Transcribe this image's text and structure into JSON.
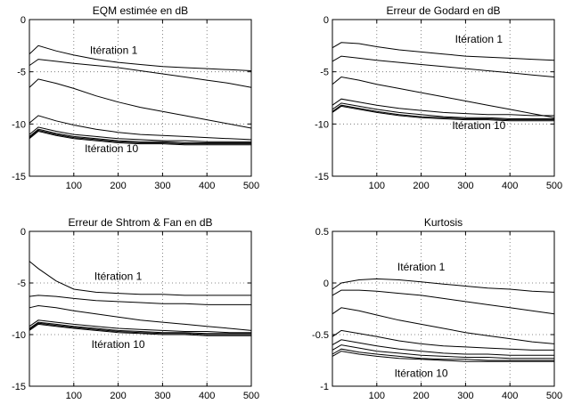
{
  "chart_data": [
    {
      "type": "line",
      "title": "EQM estimée en dB",
      "xlim": [
        0,
        500
      ],
      "ylim": [
        -15,
        0
      ],
      "xticks": [
        100,
        200,
        300,
        400,
        500
      ],
      "yticks": [
        0,
        -5,
        -10,
        -15
      ],
      "grid": true,
      "annotations": [
        {
          "text": "Itération 1",
          "x": 190,
          "y": -3.3
        },
        {
          "text": "Itération 10",
          "x": 185,
          "y": -12.7
        }
      ],
      "series": [
        {
          "x": [
            0,
            20,
            60,
            100,
            150,
            200,
            250,
            300,
            350,
            400,
            450,
            500
          ],
          "y": [
            -3.3,
            -2.5,
            -3.0,
            -3.4,
            -3.8,
            -4.1,
            -4.3,
            -4.5,
            -4.6,
            -4.7,
            -4.8,
            -4.9
          ]
        },
        {
          "x": [
            0,
            20,
            60,
            100,
            150,
            200,
            250,
            300,
            350,
            400,
            450,
            500
          ],
          "y": [
            -4.4,
            -3.8,
            -4.0,
            -4.2,
            -4.4,
            -4.6,
            -4.9,
            -5.2,
            -5.5,
            -5.8,
            -6.1,
            -6.5
          ]
        },
        {
          "x": [
            0,
            20,
            60,
            100,
            150,
            200,
            250,
            300,
            350,
            400,
            450,
            500
          ],
          "y": [
            -6.5,
            -5.7,
            -6.1,
            -6.6,
            -7.3,
            -7.9,
            -8.4,
            -8.8,
            -9.2,
            -9.6,
            -10.0,
            -10.4
          ]
        },
        {
          "x": [
            0,
            20,
            60,
            100,
            150,
            200,
            250,
            300,
            350,
            400,
            450,
            500
          ],
          "y": [
            -9.9,
            -9.2,
            -9.7,
            -10.1,
            -10.5,
            -10.8,
            -11.0,
            -11.1,
            -11.2,
            -11.3,
            -11.4,
            -11.5
          ]
        },
        {
          "x": [
            0,
            20,
            60,
            100,
            150,
            200,
            250,
            300,
            350,
            400,
            450,
            500
          ],
          "y": [
            -11.0,
            -10.3,
            -10.7,
            -11.0,
            -11.2,
            -11.4,
            -11.5,
            -11.6,
            -11.6,
            -11.7,
            -11.7,
            -11.7
          ]
        },
        {
          "x": [
            0,
            20,
            60,
            100,
            150,
            200,
            250,
            300,
            350,
            400,
            450,
            500
          ],
          "y": [
            -11.2,
            -10.5,
            -10.9,
            -11.2,
            -11.4,
            -11.6,
            -11.7,
            -11.7,
            -11.8,
            -11.8,
            -11.8,
            -11.8
          ]
        },
        {
          "x": [
            0,
            20,
            60,
            100,
            150,
            200,
            250,
            300,
            350,
            400,
            450,
            500
          ],
          "y": [
            -11.3,
            -10.6,
            -11.0,
            -11.3,
            -11.5,
            -11.7,
            -11.8,
            -11.8,
            -11.9,
            -11.9,
            -11.9,
            -11.9
          ]
        },
        {
          "x": [
            0,
            20,
            60,
            100,
            150,
            200,
            250,
            300,
            350,
            400,
            450,
            500
          ],
          "y": [
            -11.4,
            -10.7,
            -11.1,
            -11.4,
            -11.6,
            -11.8,
            -11.9,
            -11.9,
            -12.0,
            -12.0,
            -12.0,
            -12.0
          ]
        }
      ]
    },
    {
      "type": "line",
      "title": "Erreur de Godard en dB",
      "xlim": [
        0,
        500
      ],
      "ylim": [
        -15,
        0
      ],
      "xticks": [
        100,
        200,
        300,
        400,
        500
      ],
      "yticks": [
        0,
        -5,
        -10,
        -15
      ],
      "grid": true,
      "annotations": [
        {
          "text": "Itération 1",
          "x": 330,
          "y": -2.2
        },
        {
          "text": "Itération 10",
          "x": 330,
          "y": -10.5
        }
      ],
      "series": [
        {
          "x": [
            0,
            20,
            60,
            100,
            150,
            200,
            250,
            300,
            350,
            400,
            450,
            500
          ],
          "y": [
            -2.7,
            -2.2,
            -2.3,
            -2.6,
            -2.9,
            -3.1,
            -3.3,
            -3.5,
            -3.6,
            -3.7,
            -3.8,
            -3.9
          ]
        },
        {
          "x": [
            0,
            20,
            60,
            100,
            150,
            200,
            250,
            300,
            350,
            400,
            450,
            500
          ],
          "y": [
            -4.0,
            -3.5,
            -3.7,
            -3.9,
            -4.1,
            -4.3,
            -4.5,
            -4.7,
            -4.9,
            -5.1,
            -5.3,
            -5.5
          ]
        },
        {
          "x": [
            0,
            20,
            60,
            100,
            150,
            200,
            250,
            300,
            350,
            400,
            450,
            500
          ],
          "y": [
            -6.2,
            -5.5,
            -5.8,
            -6.2,
            -6.6,
            -7.0,
            -7.4,
            -7.8,
            -8.2,
            -8.6,
            -9.0,
            -9.4
          ]
        },
        {
          "x": [
            0,
            20,
            60,
            100,
            150,
            200,
            250,
            300,
            350,
            400,
            450,
            500
          ],
          "y": [
            -8.2,
            -7.6,
            -7.9,
            -8.2,
            -8.5,
            -8.7,
            -8.9,
            -9.0,
            -9.1,
            -9.1,
            -9.2,
            -9.2
          ]
        },
        {
          "x": [
            0,
            20,
            60,
            100,
            150,
            200,
            250,
            300,
            350,
            400,
            450,
            500
          ],
          "y": [
            -8.6,
            -8.0,
            -8.3,
            -8.6,
            -8.9,
            -9.1,
            -9.3,
            -9.4,
            -9.4,
            -9.5,
            -9.5,
            -9.5
          ]
        },
        {
          "x": [
            0,
            20,
            60,
            100,
            150,
            200,
            250,
            300,
            350,
            400,
            450,
            500
          ],
          "y": [
            -8.8,
            -8.2,
            -8.5,
            -8.8,
            -9.1,
            -9.3,
            -9.4,
            -9.5,
            -9.5,
            -9.6,
            -9.6,
            -9.6
          ]
        },
        {
          "x": [
            0,
            20,
            60,
            100,
            150,
            200,
            250,
            300,
            350,
            400,
            450,
            500
          ],
          "y": [
            -8.9,
            -8.3,
            -8.6,
            -8.9,
            -9.2,
            -9.4,
            -9.5,
            -9.6,
            -9.6,
            -9.7,
            -9.7,
            -9.7
          ]
        }
      ]
    },
    {
      "type": "line",
      "title": "Erreur de Shtrom & Fan en dB",
      "xlim": [
        0,
        500
      ],
      "ylim": [
        -15,
        0
      ],
      "xticks": [
        100,
        200,
        300,
        400,
        500
      ],
      "yticks": [
        0,
        -5,
        -10,
        -15
      ],
      "grid": true,
      "annotations": [
        {
          "text": "Itération 1",
          "x": 200,
          "y": -4.7
        },
        {
          "text": "Itération 10",
          "x": 200,
          "y": -11.3
        }
      ],
      "series": [
        {
          "x": [
            0,
            20,
            60,
            100,
            150,
            200,
            250,
            300,
            350,
            400,
            450,
            500
          ],
          "y": [
            -2.9,
            -3.6,
            -4.8,
            -5.6,
            -5.9,
            -6.0,
            -6.1,
            -6.1,
            -6.2,
            -6.2,
            -6.2,
            -6.2
          ]
        },
        {
          "x": [
            0,
            20,
            60,
            100,
            150,
            200,
            250,
            300,
            350,
            400,
            450,
            500
          ],
          "y": [
            -6.3,
            -6.2,
            -6.3,
            -6.5,
            -6.7,
            -6.8,
            -6.9,
            -7.0,
            -7.0,
            -7.1,
            -7.1,
            -7.1
          ]
        },
        {
          "x": [
            0,
            20,
            60,
            100,
            150,
            200,
            250,
            300,
            350,
            400,
            450,
            500
          ],
          "y": [
            -7.4,
            -7.2,
            -7.4,
            -7.7,
            -8.0,
            -8.3,
            -8.6,
            -8.8,
            -9.0,
            -9.2,
            -9.4,
            -9.6
          ]
        },
        {
          "x": [
            0,
            20,
            60,
            100,
            150,
            200,
            250,
            300,
            350,
            400,
            450,
            500
          ],
          "y": [
            -9.2,
            -8.6,
            -8.8,
            -9.0,
            -9.2,
            -9.4,
            -9.5,
            -9.6,
            -9.7,
            -9.7,
            -9.8,
            -9.8
          ]
        },
        {
          "x": [
            0,
            20,
            60,
            100,
            150,
            200,
            250,
            300,
            350,
            400,
            450,
            500
          ],
          "y": [
            -9.4,
            -8.8,
            -9.0,
            -9.2,
            -9.4,
            -9.6,
            -9.7,
            -9.8,
            -9.8,
            -9.9,
            -9.9,
            -9.9
          ]
        },
        {
          "x": [
            0,
            20,
            60,
            100,
            150,
            200,
            250,
            300,
            350,
            400,
            450,
            500
          ],
          "y": [
            -9.5,
            -8.9,
            -9.1,
            -9.3,
            -9.5,
            -9.7,
            -9.8,
            -9.9,
            -9.9,
            -10.0,
            -10.0,
            -10.0
          ]
        },
        {
          "x": [
            0,
            20,
            60,
            100,
            150,
            200,
            250,
            300,
            350,
            400,
            450,
            500
          ],
          "y": [
            -9.6,
            -9.0,
            -9.2,
            -9.4,
            -9.6,
            -9.8,
            -9.9,
            -10.0,
            -10.0,
            -10.1,
            -10.1,
            -10.1
          ]
        }
      ]
    },
    {
      "type": "line",
      "title": "Kurtosis",
      "xlim": [
        0,
        500
      ],
      "ylim": [
        -1,
        0.5
      ],
      "xticks": [
        100,
        200,
        300,
        400,
        500
      ],
      "yticks": [
        0.5,
        0,
        -0.5,
        -1
      ],
      "grid": true,
      "annotations": [
        {
          "text": "Itération 1",
          "x": 200,
          "y": 0.12
        },
        {
          "text": "Itération 10",
          "x": 200,
          "y": -0.91
        }
      ],
      "series": [
        {
          "x": [
            0,
            20,
            60,
            100,
            150,
            200,
            250,
            300,
            350,
            400,
            450,
            500
          ],
          "y": [
            -0.06,
            0.0,
            0.03,
            0.04,
            0.03,
            0.01,
            -0.01,
            -0.03,
            -0.05,
            -0.06,
            -0.08,
            -0.09
          ]
        },
        {
          "x": [
            0,
            20,
            60,
            100,
            150,
            200,
            250,
            300,
            350,
            400,
            450,
            500
          ],
          "y": [
            -0.12,
            -0.07,
            -0.07,
            -0.08,
            -0.1,
            -0.12,
            -0.15,
            -0.18,
            -0.21,
            -0.24,
            -0.27,
            -0.3
          ]
        },
        {
          "x": [
            0,
            20,
            60,
            100,
            150,
            200,
            250,
            300,
            350,
            400,
            450,
            500
          ],
          "y": [
            -0.3,
            -0.24,
            -0.27,
            -0.31,
            -0.36,
            -0.4,
            -0.44,
            -0.48,
            -0.51,
            -0.54,
            -0.57,
            -0.59
          ]
        },
        {
          "x": [
            0,
            20,
            60,
            100,
            150,
            200,
            250,
            300,
            350,
            400,
            450,
            500
          ],
          "y": [
            -0.52,
            -0.46,
            -0.49,
            -0.52,
            -0.56,
            -0.59,
            -0.61,
            -0.62,
            -0.63,
            -0.64,
            -0.65,
            -0.65
          ]
        },
        {
          "x": [
            0,
            20,
            60,
            100,
            150,
            200,
            250,
            300,
            350,
            400,
            450,
            500
          ],
          "y": [
            -0.6,
            -0.55,
            -0.58,
            -0.61,
            -0.64,
            -0.66,
            -0.68,
            -0.69,
            -0.69,
            -0.7,
            -0.7,
            -0.7
          ]
        },
        {
          "x": [
            0,
            20,
            60,
            100,
            150,
            200,
            250,
            300,
            350,
            400,
            450,
            500
          ],
          "y": [
            -0.65,
            -0.6,
            -0.63,
            -0.66,
            -0.68,
            -0.7,
            -0.71,
            -0.72,
            -0.72,
            -0.73,
            -0.73,
            -0.73
          ]
        },
        {
          "x": [
            0,
            20,
            60,
            100,
            150,
            200,
            250,
            300,
            350,
            400,
            450,
            500
          ],
          "y": [
            -0.69,
            -0.64,
            -0.67,
            -0.69,
            -0.71,
            -0.73,
            -0.74,
            -0.74,
            -0.75,
            -0.75,
            -0.75,
            -0.75
          ]
        },
        {
          "x": [
            0,
            20,
            60,
            100,
            150,
            200,
            250,
            300,
            350,
            400,
            450,
            500
          ],
          "y": [
            -0.71,
            -0.66,
            -0.69,
            -0.71,
            -0.73,
            -0.74,
            -0.75,
            -0.76,
            -0.76,
            -0.76,
            -0.76,
            -0.76
          ]
        }
      ]
    }
  ]
}
